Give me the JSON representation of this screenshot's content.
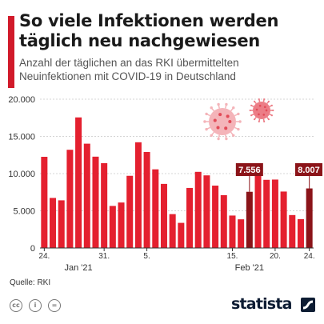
{
  "title": "So viele Infektionen werden täglich neu nachgewiesen",
  "subtitle": "Anzahl der täglichen an das RKI übermittelten Neuinfektionen mit COVID-19 in Deutschland",
  "source": "Quelle: RKI",
  "brand": "statista",
  "license_icons": [
    "cc",
    "by",
    "nd"
  ],
  "colors": {
    "bar": "#e4202f",
    "highlight": "#8b1419",
    "accent": "#d11a2a",
    "brand": "#0d1c33"
  },
  "chart_data": {
    "type": "bar",
    "title": "So viele Infektionen werden täglich neu nachgewiesen",
    "xlabel": "",
    "ylabel": "",
    "ylim": [
      0,
      20000
    ],
    "yticks": [
      "0",
      "5.000",
      "10.000",
      "15.000",
      "20.000"
    ],
    "grid": true,
    "x_tick_labels": [
      "24.",
      "31.",
      "5.",
      "15.",
      "20.",
      "24."
    ],
    "x_month_labels": [
      "Jan '21",
      "Feb '21"
    ],
    "values": [
      12257,
      6729,
      6408,
      13202,
      17553,
      14022,
      12277,
      11408,
      5654,
      6114,
      9705,
      14211,
      12908,
      10573,
      8616,
      4554,
      3379,
      8072,
      10237,
      9763,
      8385,
      7101,
      4363,
      3856,
      7556,
      10207,
      9164,
      9198,
      7588,
      4426,
      3883,
      8007
    ],
    "highlight_indices": [
      24,
      31
    ],
    "annotations": [
      {
        "index": 24,
        "label": "7.556"
      },
      {
        "index": 31,
        "label": "8.007"
      }
    ]
  }
}
